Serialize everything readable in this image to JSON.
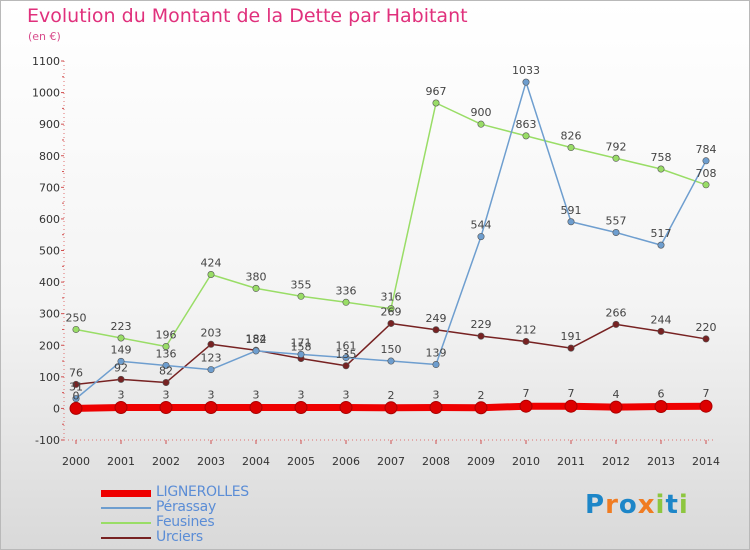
{
  "title": "Evolution du Montant de la Dette par Habitant",
  "subtitle": "(en €)",
  "legend": [
    {
      "label": "LIGNEROLLES",
      "color": "#ee0000",
      "width": 7
    },
    {
      "label": "Pérassay",
      "color": "#6e9ecf",
      "width": 2
    },
    {
      "label": "Feusines",
      "color": "#99dd66",
      "width": 2
    },
    {
      "label": "Urciers",
      "color": "#772222",
      "width": 2
    }
  ],
  "logo": {
    "text": "Proxiti",
    "colors": [
      "#1d86c8",
      "#f07c22",
      "#1d86c8",
      "#f07c22",
      "#8dc63f",
      "#1d86c8",
      "#8dc63f"
    ]
  },
  "chart_data": {
    "type": "line",
    "x": [
      "2000",
      "2001",
      "2002",
      "2003",
      "2004",
      "2005",
      "2006",
      "2007",
      "2008",
      "2009",
      "2010",
      "2011",
      "2012",
      "2013",
      "2014"
    ],
    "yticks": [
      "-100",
      "0",
      "100",
      "200",
      "300",
      "400",
      "500",
      "600",
      "700",
      "800",
      "900",
      "1000",
      "1100"
    ],
    "ylim": [
      -100,
      1100
    ],
    "grid": false,
    "legend_position": "bottom-left",
    "series": [
      {
        "name": "LIGNEROLLES",
        "color": "#ee0000",
        "values": [
          0,
          3,
          3,
          3,
          3,
          3,
          3,
          2,
          3,
          2,
          7,
          7,
          4,
          6,
          7
        ],
        "labels": [
          "0",
          "3",
          "3",
          "3",
          "3",
          "3",
          "3",
          "2",
          "3",
          "2",
          "7",
          "7",
          "4",
          "6",
          "7"
        ]
      },
      {
        "name": "Pérassay",
        "color": "#6e9ecf",
        "values": [
          31,
          149,
          136,
          123,
          182,
          171,
          161,
          150,
          139,
          544,
          1033,
          591,
          557,
          517,
          784
        ],
        "labels": [
          "31",
          "149",
          "136",
          "123",
          "182",
          "171",
          "161",
          "150",
          "139",
          "544",
          "1033",
          "591",
          "557",
          "517",
          "784"
        ]
      },
      {
        "name": "Feusines",
        "color": "#99dd66",
        "values": [
          250,
          223,
          196,
          424,
          380,
          355,
          336,
          316,
          967,
          900,
          863,
          826,
          792,
          758,
          708
        ],
        "labels": [
          "250",
          "223",
          "196",
          "424",
          "380",
          "355",
          "336",
          "316",
          "967",
          "900",
          "863",
          "826",
          "792",
          "758",
          "708"
        ]
      },
      {
        "name": "Urciers",
        "color": "#772222",
        "values": [
          76,
          92,
          82,
          203,
          184,
          158,
          135,
          269,
          249,
          229,
          212,
          191,
          266,
          244,
          220
        ],
        "labels": [
          "76",
          "92",
          "82",
          "203",
          "184",
          "158",
          "135",
          "269",
          "249",
          "229",
          "212",
          "191",
          "266",
          "244",
          "220"
        ]
      }
    ]
  }
}
